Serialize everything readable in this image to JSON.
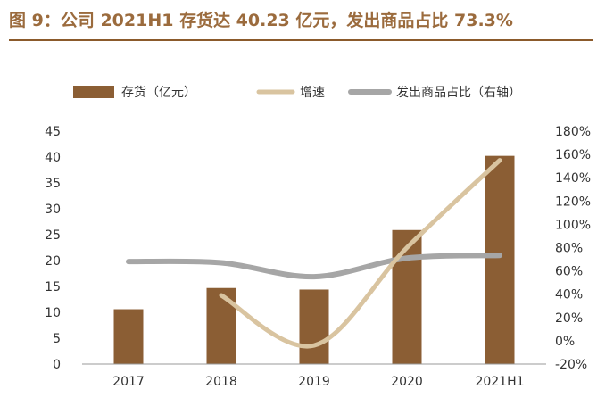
{
  "title": "图 9：公司 2021H1 存货达 40.23 亿元，发出商品占比 73.3%",
  "colors": {
    "title": "#9B6B3D",
    "inventory": "#8B5E34",
    "growth": "#D9C4A0",
    "ratio": "#A6A6A6",
    "axis": "#999999"
  },
  "chart_data": {
    "type": "bar",
    "categories": [
      "2017",
      "2018",
      "2019",
      "2020",
      "2021H1"
    ],
    "series": [
      {
        "name": "存货（亿元）",
        "type": "bar",
        "axis": "left",
        "values": [
          10.6,
          14.7,
          14.4,
          25.9,
          40.23
        ]
      },
      {
        "name": "增速",
        "type": "line",
        "axis": "right",
        "unit": "%",
        "values": [
          null,
          39,
          -4,
          80,
          155
        ]
      },
      {
        "name": "发出商品占比（右轴）",
        "type": "line",
        "axis": "right",
        "unit": "%",
        "values": [
          68,
          67,
          55,
          71,
          73.3
        ]
      }
    ],
    "y_left": {
      "range": [
        0,
        45
      ],
      "ticks": [
        "0",
        "5",
        "10",
        "15",
        "20",
        "25",
        "30",
        "35",
        "40",
        "45"
      ]
    },
    "y_right": {
      "range": [
        -20,
        180
      ],
      "ticks": [
        "-20%",
        "0%",
        "20%",
        "40%",
        "60%",
        "80%",
        "100%",
        "120%",
        "140%",
        "160%",
        "180%"
      ]
    },
    "legend_position": "top",
    "grid": false
  }
}
